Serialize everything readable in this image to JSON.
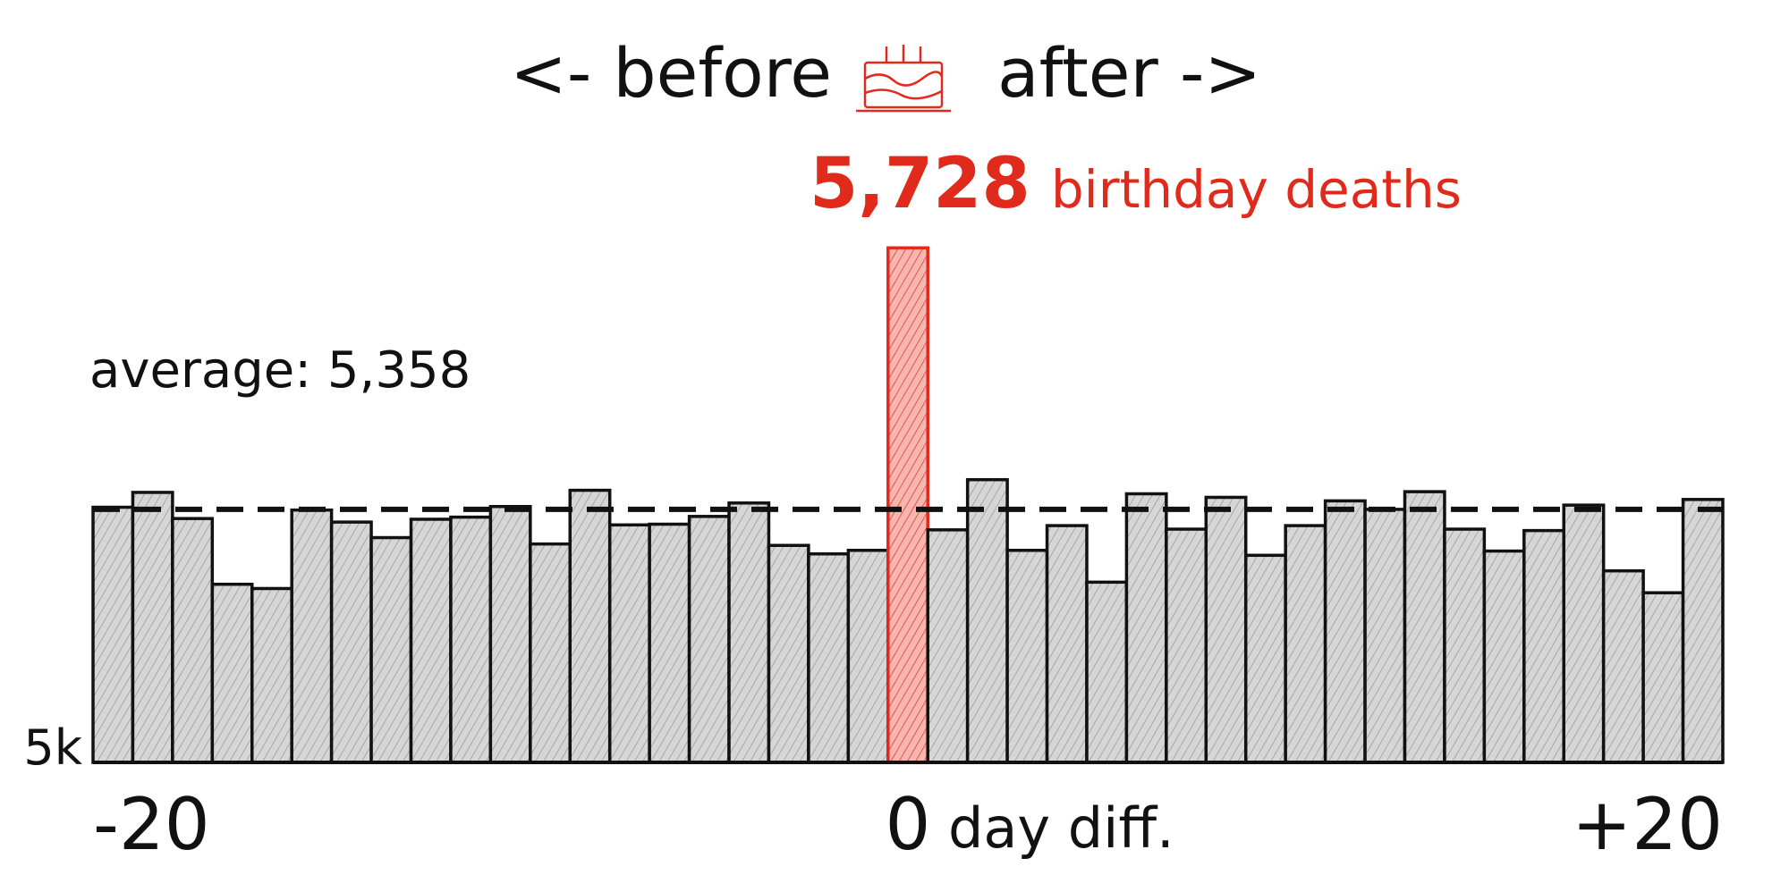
{
  "chart_data": {
    "type": "bar",
    "title": "<- before",
    "title_after": "after ->",
    "title_icon": "birthday-cake-icon",
    "x": [
      -20,
      -19,
      -18,
      -17,
      -16,
      -15,
      -14,
      -13,
      -12,
      -11,
      -10,
      -9,
      -8,
      -7,
      -6,
      -5,
      -4,
      -3,
      -2,
      -1,
      0,
      1,
      2,
      3,
      4,
      5,
      6,
      7,
      8,
      9,
      10,
      11,
      12,
      13,
      14,
      15,
      16,
      17,
      18,
      19,
      20
    ],
    "values": [
      5361,
      5382,
      5345,
      5252,
      5246,
      5357,
      5340,
      5318,
      5344,
      5347,
      5362,
      5309,
      5385,
      5336,
      5337,
      5348,
      5367,
      5307,
      5295,
      5300,
      5728,
      5329,
      5400,
      5300,
      5335,
      5255,
      5380,
      5330,
      5375,
      5293,
      5335,
      5370,
      5358,
      5383,
      5330,
      5299,
      5328,
      5364,
      5271,
      5240,
      5372
    ],
    "highlight": {
      "index": 20,
      "label_value": "5,728",
      "label_text": "birthday deaths",
      "color": "#e02b1c",
      "fill": "#f4b3ac"
    },
    "average": {
      "value": 5358,
      "label": "average: 5,358"
    },
    "ylim": [
      5000,
      5760
    ],
    "y_tick_labels": [
      {
        "value": 5000,
        "label": "5k"
      }
    ],
    "x_tick_labels": [
      {
        "value": -20,
        "label": "-20"
      },
      {
        "value": 0,
        "label": "0"
      },
      {
        "value": 20,
        "label": "+20"
      }
    ],
    "xlabel": "day diff.",
    "bar_fill": "#d9d9d9",
    "bar_stroke": "#111111",
    "grid": false,
    "legend": "none"
  }
}
